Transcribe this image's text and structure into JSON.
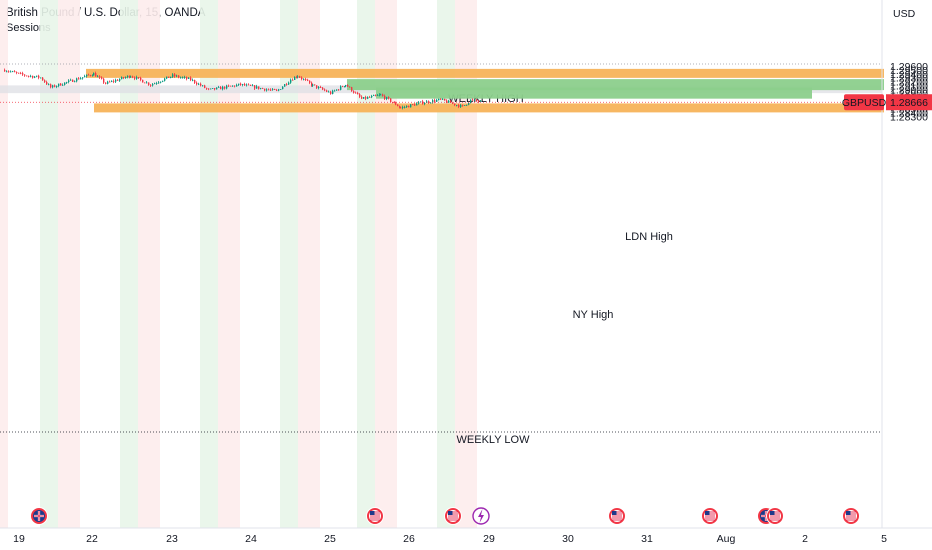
{
  "header": {
    "symbol_title": "British Pound / U.S. Dollar, 15, OANDA",
    "indicator": "Sessions",
    "currency": "USD"
  },
  "price_badge": {
    "symbol": "GBPUSD",
    "value": "1.28666",
    "color": "#f23645"
  },
  "chart_data": {
    "type": "candlestick",
    "title": "British Pound / U.S. Dollar, 15, OANDA",
    "x_ticks": [
      "19",
      "22",
      "23",
      "24",
      "25",
      "26",
      "29",
      "30",
      "31",
      "Aug",
      "2",
      "5"
    ],
    "y_ticks": [
      "1.29600",
      "1.29500",
      "1.29400",
      "1.29300",
      "1.29200",
      "1.29100",
      "1.29000",
      "1.28900",
      "1.28800",
      "1.28700",
      "1.28600",
      "1.28500",
      "1.28400",
      "1.28300"
    ],
    "ylim": [
      1.2822,
      1.2968
    ],
    "last_price": 1.28666,
    "levels": [
      {
        "name": "weekly-high",
        "label": "WEEKLY HIGH",
        "price": 1.2941,
        "color": "#f7b35a",
        "start": "21",
        "end": "5"
      },
      {
        "name": "ldn-high",
        "label": "LDN High",
        "price": 1.2912,
        "color": "#8ccf8c",
        "start": "25",
        "end": "5"
      },
      {
        "name": "ny-high",
        "label": "NY High",
        "price": 1.289,
        "color": "#8ccf8c",
        "start": "25",
        "end": "2"
      },
      {
        "name": "weekly-low",
        "label": "WEEKLY LOW",
        "price": 1.2852,
        "color": "#f7b35a",
        "start": "22",
        "end": "5"
      }
    ],
    "zone": {
      "from": 1.289,
      "to": 1.291,
      "color": "#dddfe4"
    },
    "close_path": [
      [
        "19",
        1.295
      ],
      [
        "19",
        1.2938
      ],
      [
        "19",
        1.293
      ],
      [
        "22",
        1.2905
      ],
      [
        "22",
        1.294
      ],
      [
        "22",
        1.2915
      ],
      [
        "22",
        1.2935
      ],
      [
        "23",
        1.2912
      ],
      [
        "23",
        1.2935
      ],
      [
        "23",
        1.2925
      ],
      [
        "23",
        1.2898
      ],
      [
        "24",
        1.2912
      ],
      [
        "24",
        1.2895
      ],
      [
        "24",
        1.2925
      ],
      [
        "25",
        1.2935
      ],
      [
        "25",
        1.291
      ],
      [
        "25",
        1.289
      ],
      [
        "25",
        1.2912
      ],
      [
        "25",
        1.2875
      ],
      [
        "26",
        1.2885
      ],
      [
        "26",
        1.2862
      ],
      [
        "26",
        1.2852
      ],
      [
        "26",
        1.2865
      ],
      [
        "26",
        1.2873
      ],
      [
        "26",
        1.2855
      ],
      [
        "29",
        1.2872
      ],
      [
        "29",
        1.2867
      ]
    ],
    "events": [
      "US",
      "GB",
      "US",
      "US",
      "bolt",
      "US",
      "US",
      "GB",
      "US",
      "US"
    ],
    "grid": false,
    "legend": "none"
  }
}
